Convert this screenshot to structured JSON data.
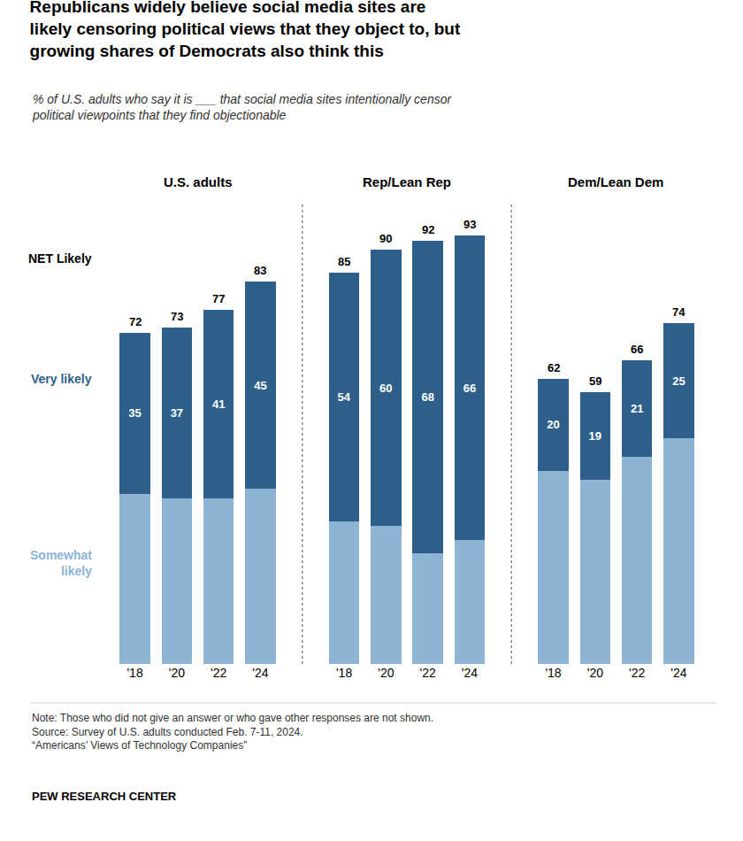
{
  "chart_data": {
    "type": "bar",
    "title": "Republicans widely believe social media sites are\nlikely censoring political views that they object to, but\ngrowing shares of Democrats also think this",
    "subtitle": "% of U.S. adults who say it is ___ that social media sites intentionally censor\npolitical viewpoints that they find objectionable",
    "groups": [
      "U.S. adults",
      "Rep/Lean Rep",
      "Dem/Lean Dem"
    ],
    "categories": [
      "'18",
      "'20",
      "'22",
      "'24"
    ],
    "series": [
      {
        "name": "Somewhat\nlikely",
        "color": "#8EB4D4",
        "data_labels": false,
        "values": [
          [
            37,
            36,
            36,
            38
          ],
          [
            31,
            30,
            24,
            27
          ],
          [
            42,
            40,
            45,
            49
          ]
        ]
      },
      {
        "name": "Very likely",
        "color": "#2E5F8A",
        "data_labels": true,
        "values": [
          [
            35,
            37,
            41,
            45
          ],
          [
            54,
            60,
            68,
            66
          ],
          [
            20,
            19,
            21,
            25
          ]
        ]
      }
    ],
    "net": {
      "name": "NET Likely",
      "values": [
        [
          72,
          73,
          77,
          83
        ],
        [
          85,
          90,
          92,
          93
        ],
        [
          62,
          59,
          66,
          74
        ]
      ]
    },
    "stacked": true,
    "ylim": [
      0,
      100
    ],
    "grid": false,
    "tick_labels": "x",
    "divider_color": "#888888",
    "note": "Note: Those who did not give an answer or who gave other responses are not shown.\nSource: Survey of U.S. adults conducted Feb. 7-11, 2024.\n“Americans’ Views of Technology Companies”",
    "source": "PEW RESEARCH CENTER"
  }
}
